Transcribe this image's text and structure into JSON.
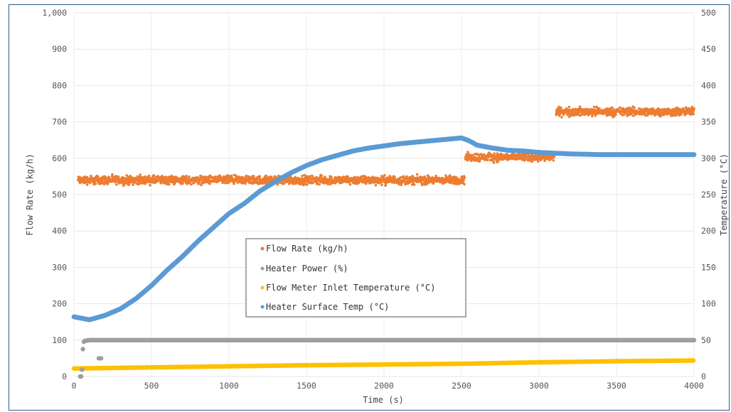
{
  "chart_data": {
    "type": "scatter",
    "title": "",
    "xlabel": "Time (s)",
    "ylabel": "Flow Rate (kg/h)",
    "y2label": "Temperature (°C)",
    "xlim": [
      0,
      4000
    ],
    "ylim": [
      0,
      1000
    ],
    "y2lim": [
      0,
      500
    ],
    "grid": true,
    "legend_position": "center",
    "x_ticks": [
      "0",
      "500",
      "1000",
      "1500",
      "2000",
      "2500",
      "3000",
      "3500",
      "4000"
    ],
    "y_ticks": [
      "0",
      "100",
      "200",
      "300",
      "400",
      "500",
      "600",
      "700",
      "800",
      "900",
      "1,000"
    ],
    "y2_ticks": [
      "0",
      "50",
      "100",
      "150",
      "200",
      "250",
      "300",
      "350",
      "400",
      "450",
      "500"
    ],
    "series": [
      {
        "name": "Flow Rate (kg/h)",
        "axis": "left",
        "color": "#ed7d31",
        "segments": [
          {
            "x_start": 25,
            "x_end": 2520,
            "mean": 540,
            "spread": 14
          },
          {
            "x_start": 2525,
            "x_end": 3100,
            "mean": 603,
            "spread": 14
          },
          {
            "x_start": 3110,
            "x_end": 4000,
            "mean": 728,
            "spread": 14
          }
        ]
      },
      {
        "name": "Heater Power (%)",
        "axis": "right",
        "color": "#9e9e9e",
        "x": [
          40,
          50,
          60,
          70,
          100,
          200,
          500,
          1000,
          1500,
          2000,
          2500,
          3000,
          3500,
          4000
        ],
        "y": [
          0,
          0,
          47,
          49,
          50,
          50,
          50,
          50,
          50,
          50,
          50,
          50,
          50,
          50
        ],
        "extra_points": [
          {
            "x": 160,
            "y": 25
          },
          {
            "x": 175,
            "y": 25
          }
        ]
      },
      {
        "name": "Flow Meter Inlet Temperature (°C)",
        "axis": "right",
        "color": "#ffc000",
        "x": [
          0,
          500,
          1000,
          1500,
          2000,
          2500,
          3000,
          3500,
          4000
        ],
        "y": [
          11,
          12.5,
          14,
          15.5,
          16.5,
          17.5,
          19.5,
          21,
          22
        ]
      },
      {
        "name": "Heater Surface Temp (°C)",
        "axis": "right",
        "color": "#5b9bd5",
        "x": [
          0,
          50,
          100,
          200,
          300,
          400,
          500,
          600,
          700,
          800,
          900,
          1000,
          1100,
          1200,
          1300,
          1400,
          1500,
          1600,
          1700,
          1800,
          1900,
          2000,
          2100,
          2200,
          2300,
          2400,
          2500,
          2550,
          2600,
          2700,
          2800,
          2900,
          3000,
          3100,
          3200,
          3300,
          3400,
          3500,
          3600,
          3700,
          3800,
          3900,
          4000
        ],
        "y": [
          82,
          80,
          78,
          84,
          93,
          107,
          125,
          146,
          165,
          186,
          205,
          224,
          238,
          255,
          268,
          280,
          290,
          298,
          304,
          310,
          314,
          317,
          320,
          322,
          324,
          326,
          328,
          324,
          318,
          314,
          311,
          310,
          308,
          307,
          306,
          305.5,
          305,
          305,
          305,
          305,
          305,
          305,
          305
        ]
      }
    ]
  }
}
